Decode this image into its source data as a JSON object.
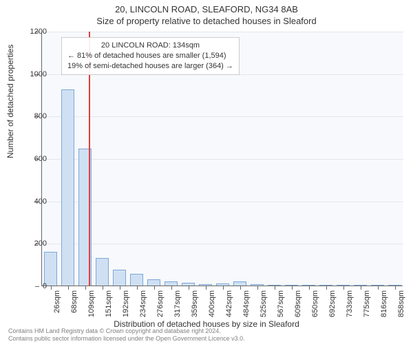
{
  "title": "20, LINCOLN ROAD, SLEAFORD, NG34 8AB",
  "subtitle": "Size of property relative to detached houses in Sleaford",
  "ylabel": "Number of detached properties",
  "xlabel": "Distribution of detached houses by size in Sleaford",
  "chart": {
    "type": "bar",
    "background_color": "#f7f9fc",
    "grid_color": "#e3e7ee",
    "axis_color": "#666666",
    "bar_fill": "#cfe0f3",
    "bar_stroke": "#7da7d9",
    "ymax": 1200,
    "ytick_step": 200,
    "yticks": [
      0,
      200,
      400,
      600,
      800,
      1000,
      1200
    ],
    "categories": [
      "26sqm",
      "68sqm",
      "109sqm",
      "151sqm",
      "192sqm",
      "234sqm",
      "276sqm",
      "317sqm",
      "359sqm",
      "400sqm",
      "442sqm",
      "484sqm",
      "525sqm",
      "567sqm",
      "609sqm",
      "650sqm",
      "692sqm",
      "733sqm",
      "775sqm",
      "816sqm",
      "858sqm"
    ],
    "values": [
      160,
      925,
      645,
      130,
      75,
      55,
      30,
      18,
      12,
      8,
      10,
      20,
      5,
      3,
      0,
      0,
      0,
      0,
      0,
      0,
      0
    ],
    "marker": {
      "position_sqm": 134,
      "min_sqm": 26,
      "max_sqm": 858,
      "color": "#e03c3c"
    },
    "annotation": {
      "line1": "20 LINCOLN ROAD: 134sqm",
      "line2": "← 81% of detached houses are smaller (1,594)",
      "line3": "19% of semi-detached houses are larger (364) →"
    }
  },
  "copyright": {
    "line1": "Contains HM Land Registry data © Crown copyright and database right 2024.",
    "line2": "Contains public sector information licensed under the Open Government Licence v3.0."
  }
}
